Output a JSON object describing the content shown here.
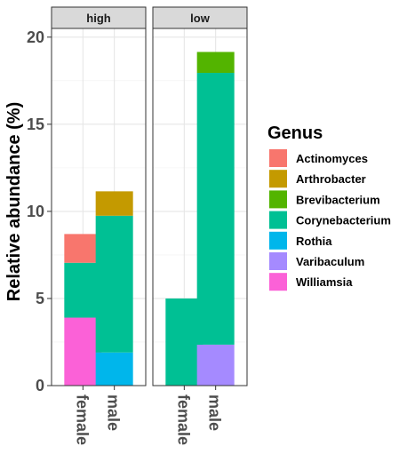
{
  "chart_data": {
    "type": "bar",
    "stacked": true,
    "ylabel": "Relative abundance (%)",
    "ylim": [
      0,
      20.5
    ],
    "yticks": [
      0,
      5,
      10,
      15,
      20
    ],
    "legend_title": "Genus",
    "legend_position": "right",
    "genera": [
      {
        "name": "Actinomyces",
        "color": "#F8766D"
      },
      {
        "name": "Arthrobacter",
        "color": "#C49A00"
      },
      {
        "name": "Brevibacterium",
        "color": "#53B400"
      },
      {
        "name": "Corynebacterium",
        "color": "#00C094"
      },
      {
        "name": "Rothia",
        "color": "#00B6EB"
      },
      {
        "name": "Varibaculum",
        "color": "#A58AFF"
      },
      {
        "name": "Williamsia",
        "color": "#FB61D7"
      }
    ],
    "panels": [
      {
        "label": "high",
        "bars": [
          {
            "x": "female",
            "segments": [
              {
                "genus": "Williamsia",
                "value": 3.9
              },
              {
                "genus": "Corynebacterium",
                "value": 3.15
              },
              {
                "genus": "Actinomyces",
                "value": 1.65
              }
            ]
          },
          {
            "x": "male",
            "segments": [
              {
                "genus": "Rothia",
                "value": 1.9
              },
              {
                "genus": "Corynebacterium",
                "value": 7.85
              },
              {
                "genus": "Arthrobacter",
                "value": 1.4
              }
            ]
          }
        ]
      },
      {
        "label": "low",
        "bars": [
          {
            "x": "female",
            "segments": [
              {
                "genus": "Corynebacterium",
                "value": 5.0
              }
            ]
          },
          {
            "x": "male",
            "segments": [
              {
                "genus": "Varibaculum",
                "value": 2.35
              },
              {
                "genus": "Corynebacterium",
                "value": 15.6
              },
              {
                "genus": "Brevibacterium",
                "value": 1.2
              }
            ]
          }
        ]
      }
    ]
  }
}
